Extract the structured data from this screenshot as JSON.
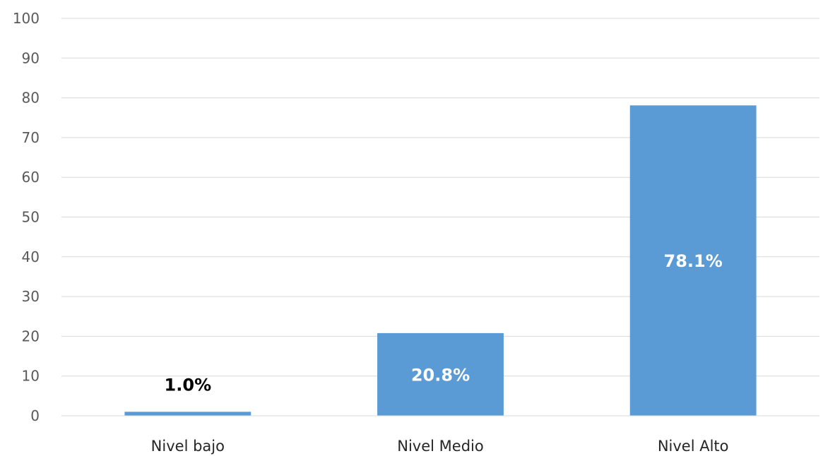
{
  "chart_data": {
    "type": "bar",
    "title": "",
    "xlabel": "",
    "ylabel": "",
    "categories": [
      "Nivel bajo",
      "Nivel Medio",
      "Nivel Alto"
    ],
    "values": [
      1.0,
      20.8,
      78.1
    ],
    "data_labels": [
      "1.0%",
      "20.8%",
      "78.1%"
    ],
    "ylim": [
      0,
      100
    ],
    "yticks": [
      0,
      10,
      20,
      30,
      40,
      50,
      60,
      70,
      80,
      90,
      100
    ],
    "grid": true,
    "legend": "none",
    "colors": {
      "bar": "#5B9BD5",
      "grid": "#D9D9D9",
      "label_inside": "#FFFFFF",
      "label_outside": "#000000"
    }
  }
}
